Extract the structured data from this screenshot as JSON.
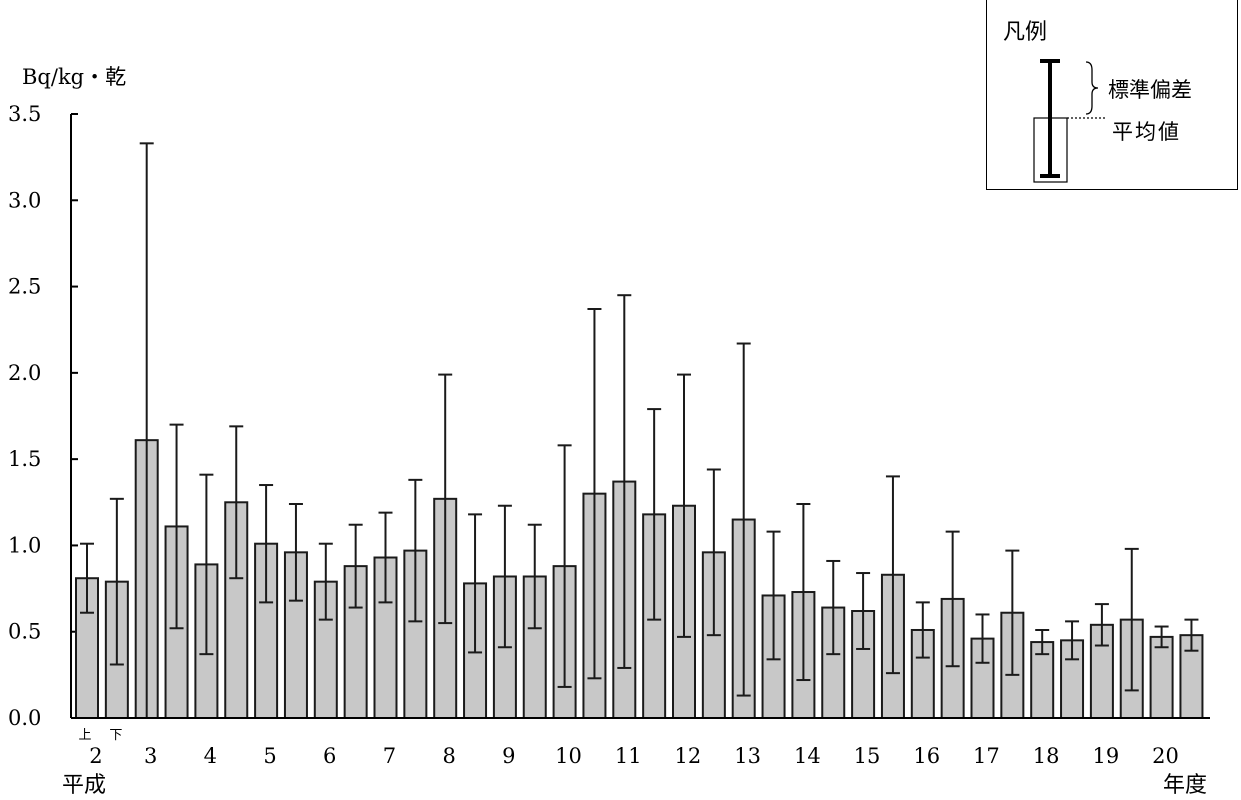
{
  "chart_data": {
    "type": "bar",
    "ylabel": "Bq/kg・乾",
    "xlabel": "年度",
    "era_label": "平成",
    "ylim": [
      0,
      3.5
    ],
    "yticks": [
      "0.0",
      "0.5",
      "1.0",
      "1.5",
      "2.0",
      "2.5",
      "3.0",
      "3.5"
    ],
    "year_labels": [
      "2",
      "3",
      "4",
      "5",
      "6",
      "7",
      "8",
      "9",
      "10",
      "11",
      "12",
      "13",
      "14",
      "15",
      "16",
      "17",
      "18",
      "19",
      "20"
    ],
    "half_labels": [
      "上",
      "下"
    ],
    "means": [
      0.81,
      0.79,
      1.61,
      1.11,
      0.89,
      1.25,
      1.01,
      0.96,
      0.79,
      0.88,
      0.93,
      0.97,
      1.27,
      0.78,
      0.82,
      0.82,
      0.88,
      1.3,
      1.37,
      1.18,
      1.23,
      0.96,
      1.15,
      0.71,
      0.73,
      0.64,
      0.62,
      0.83,
      0.51,
      0.69,
      0.46,
      0.61,
      0.44,
      0.45,
      0.54,
      0.57,
      0.47,
      0.48
    ],
    "std_devs": [
      0.2,
      0.48,
      1.72,
      0.59,
      0.52,
      0.44,
      0.34,
      0.28,
      0.22,
      0.24,
      0.26,
      0.41,
      0.72,
      0.4,
      0.41,
      0.3,
      0.7,
      1.07,
      1.08,
      0.61,
      0.76,
      0.48,
      1.02,
      0.37,
      0.51,
      0.27,
      0.22,
      0.57,
      0.16,
      0.39,
      0.14,
      0.36,
      0.07,
      0.11,
      0.12,
      0.41,
      0.06,
      0.09
    ],
    "grid": false
  },
  "legend": {
    "title": "凡例",
    "sd_label": "標準偏差",
    "mean_label": "平均値"
  },
  "colors": {
    "bar_fill": "#c8c8c8",
    "bar_stroke": "#1a1a1a",
    "axis": "#000000"
  }
}
